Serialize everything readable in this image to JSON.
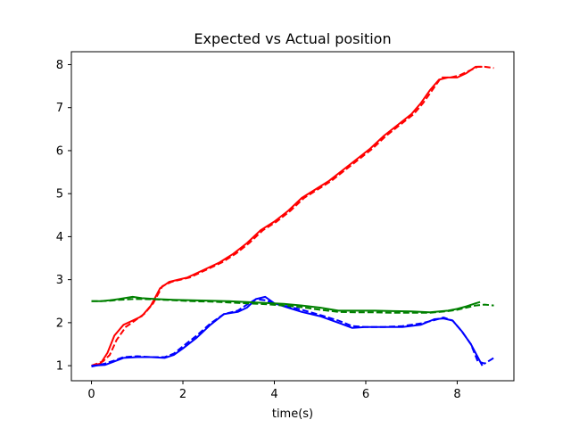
{
  "chart_data": {
    "type": "line",
    "title": "Expected vs Actual position",
    "xlabel": "time(s)",
    "ylabel": "",
    "xlim": [
      -0.44,
      9.24
    ],
    "ylim": [
      0.65,
      8.3
    ],
    "xticks": [
      0,
      2,
      4,
      6,
      8
    ],
    "yticks": [
      1,
      2,
      3,
      4,
      5,
      6,
      7,
      8
    ],
    "grid": false,
    "series": [
      {
        "color": "#ff0000",
        "dash": false,
        "x": [
          0.0,
          0.2,
          0.35,
          0.5,
          0.7,
          0.9,
          1.1,
          1.3,
          1.5,
          1.7,
          1.9,
          2.1,
          2.3,
          2.5,
          2.8,
          3.1,
          3.4,
          3.7,
          4.0,
          4.3,
          4.6,
          4.9,
          5.2,
          5.5,
          5.8,
          6.1,
          6.4,
          6.7,
          7.0,
          7.2,
          7.4,
          7.6,
          7.8,
          8.0,
          8.2,
          8.4,
          8.55
        ],
        "y": [
          1.0,
          1.05,
          1.3,
          1.7,
          1.95,
          2.05,
          2.15,
          2.4,
          2.8,
          2.95,
          3.0,
          3.05,
          3.15,
          3.25,
          3.4,
          3.6,
          3.85,
          4.15,
          4.35,
          4.6,
          4.9,
          5.1,
          5.3,
          5.55,
          5.8,
          6.05,
          6.35,
          6.6,
          6.85,
          7.1,
          7.4,
          7.65,
          7.7,
          7.7,
          7.8,
          7.95,
          7.95
        ]
      },
      {
        "color": "#ff0000",
        "dash": true,
        "x": [
          0.0,
          0.25,
          0.4,
          0.55,
          0.75,
          0.95,
          1.15,
          1.35,
          1.55,
          1.75,
          1.95,
          2.15,
          2.35,
          2.55,
          2.85,
          3.15,
          3.45,
          3.75,
          4.05,
          4.35,
          4.65,
          4.95,
          5.25,
          5.55,
          5.85,
          6.15,
          6.45,
          6.75,
          7.05,
          7.25,
          7.45,
          7.65,
          7.85,
          8.05,
          8.25,
          8.45,
          8.6,
          8.8
        ],
        "y": [
          1.0,
          1.1,
          1.25,
          1.6,
          1.9,
          2.05,
          2.2,
          2.45,
          2.85,
          2.95,
          3.0,
          3.05,
          3.15,
          3.25,
          3.4,
          3.6,
          3.85,
          4.15,
          4.35,
          4.6,
          4.9,
          5.1,
          5.3,
          5.55,
          5.8,
          6.05,
          6.35,
          6.6,
          6.85,
          7.1,
          7.4,
          7.7,
          7.7,
          7.75,
          7.85,
          7.95,
          7.95,
          7.92
        ]
      },
      {
        "color": "#0000ff",
        "dash": false,
        "x": [
          0.0,
          0.3,
          0.5,
          0.7,
          1.0,
          1.3,
          1.6,
          1.8,
          2.0,
          2.3,
          2.6,
          2.9,
          3.2,
          3.4,
          3.6,
          3.8,
          4.0,
          4.3,
          4.6,
          5.0,
          5.4,
          5.7,
          6.0,
          6.4,
          6.8,
          7.2,
          7.5,
          7.7,
          7.9,
          8.1,
          8.3,
          8.45,
          8.55
        ],
        "y": [
          1.0,
          1.02,
          1.1,
          1.18,
          1.2,
          1.2,
          1.18,
          1.25,
          1.4,
          1.65,
          1.95,
          2.2,
          2.25,
          2.35,
          2.55,
          2.6,
          2.45,
          2.35,
          2.25,
          2.15,
          2.0,
          1.88,
          1.9,
          1.9,
          1.9,
          1.95,
          2.08,
          2.1,
          2.05,
          1.8,
          1.5,
          1.2,
          1.0
        ]
      },
      {
        "color": "#0000ff",
        "dash": true,
        "x": [
          0.0,
          0.3,
          0.5,
          0.7,
          1.0,
          1.3,
          1.6,
          1.8,
          2.0,
          2.3,
          2.6,
          2.9,
          3.2,
          3.4,
          3.6,
          3.8,
          4.0,
          4.3,
          4.6,
          5.0,
          5.4,
          5.7,
          6.0,
          6.4,
          6.8,
          7.2,
          7.5,
          7.7,
          7.9,
          8.1,
          8.3,
          8.45,
          8.6,
          8.8
        ],
        "y": [
          0.98,
          1.05,
          1.12,
          1.2,
          1.22,
          1.2,
          1.2,
          1.28,
          1.45,
          1.7,
          1.98,
          2.2,
          2.28,
          2.42,
          2.55,
          2.52,
          2.45,
          2.38,
          2.3,
          2.18,
          2.05,
          1.92,
          1.9,
          1.9,
          1.92,
          1.98,
          2.06,
          2.12,
          2.05,
          1.8,
          1.5,
          1.1,
          1.05,
          1.18
        ]
      },
      {
        "color": "#008000",
        "dash": false,
        "x": [
          0.0,
          0.2,
          0.4,
          0.6,
          0.9,
          1.1,
          1.4,
          1.8,
          2.2,
          2.6,
          3.0,
          3.4,
          3.8,
          4.2,
          4.6,
          5.0,
          5.4,
          5.8,
          6.2,
          6.6,
          7.0,
          7.4,
          7.8,
          8.0,
          8.2,
          8.4,
          8.5
        ],
        "y": [
          2.5,
          2.5,
          2.52,
          2.55,
          2.6,
          2.57,
          2.55,
          2.53,
          2.52,
          2.51,
          2.5,
          2.48,
          2.46,
          2.44,
          2.4,
          2.35,
          2.28,
          2.28,
          2.28,
          2.27,
          2.26,
          2.24,
          2.28,
          2.32,
          2.38,
          2.45,
          2.48
        ]
      },
      {
        "color": "#008000",
        "dash": true,
        "x": [
          0.0,
          0.2,
          0.4,
          0.6,
          0.9,
          1.1,
          1.4,
          1.8,
          2.2,
          2.6,
          3.0,
          3.4,
          3.8,
          4.2,
          4.6,
          5.0,
          5.4,
          5.8,
          6.2,
          6.6,
          7.0,
          7.4,
          7.8,
          8.0,
          8.2,
          8.4,
          8.6,
          8.8
        ],
        "y": [
          2.5,
          2.5,
          2.51,
          2.53,
          2.55,
          2.55,
          2.54,
          2.52,
          2.5,
          2.49,
          2.47,
          2.45,
          2.43,
          2.4,
          2.36,
          2.3,
          2.25,
          2.24,
          2.24,
          2.23,
          2.23,
          2.23,
          2.27,
          2.3,
          2.35,
          2.4,
          2.42,
          2.4
        ]
      }
    ]
  }
}
